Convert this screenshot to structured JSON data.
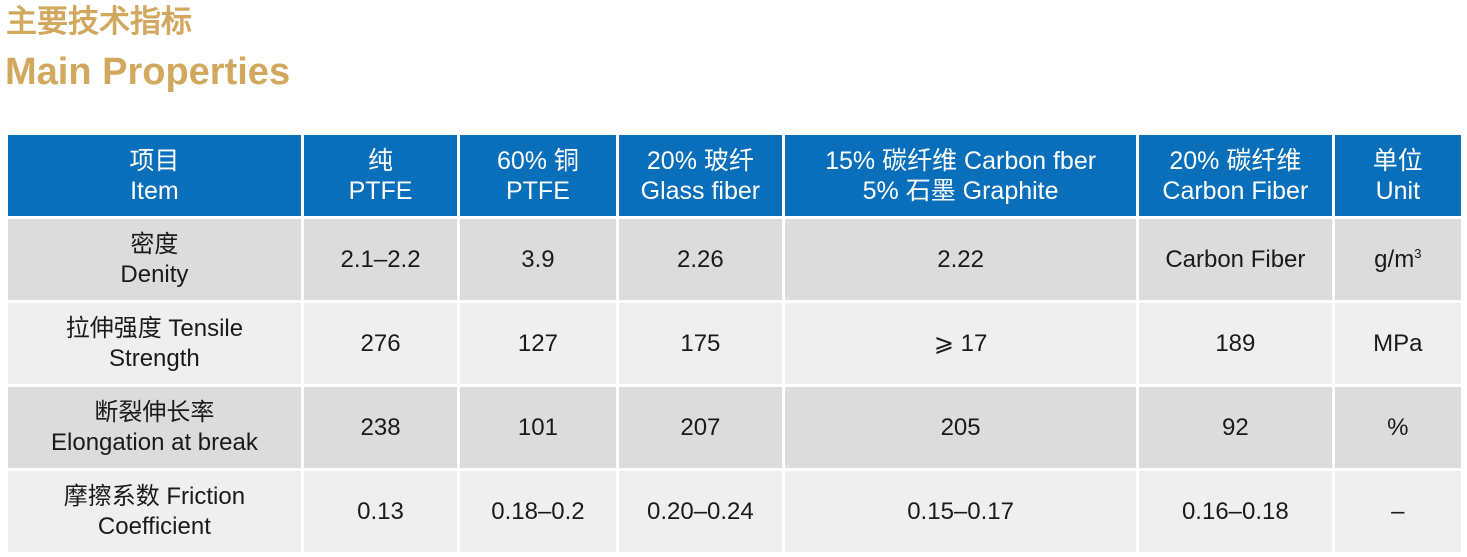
{
  "title_cn": "主要技术指标",
  "title_en": "Main Properties",
  "columns": [
    {
      "line1": "项目",
      "line2": "Item"
    },
    {
      "line1": "纯",
      "line2": "PTFE"
    },
    {
      "line1": "60% 铜",
      "line2": "PTFE"
    },
    {
      "line1": "20% 玻纤",
      "line2": "Glass fiber"
    },
    {
      "line1": "15% 碳纤维 Carbon fber",
      "line2": "5% 石墨 Graphite"
    },
    {
      "line1": "20% 碳纤维",
      "line2": "Carbon Fiber"
    },
    {
      "line1": "单位",
      "line2": "Unit"
    }
  ],
  "rows": [
    {
      "item_line1": "密度",
      "item_line2": "Denity",
      "values": [
        "2.1–2.2",
        "3.9",
        "2.26",
        "2.22",
        "Carbon Fiber"
      ],
      "unit": "g/m",
      "unit_sup": "3"
    },
    {
      "item_line1": "拉伸强度 Tensile",
      "item_line2": "Strength",
      "values": [
        "276",
        "127",
        "175",
        "⩾ 17",
        "189"
      ],
      "unit": "MPa",
      "unit_sup": ""
    },
    {
      "item_line1": "断裂伸长率",
      "item_line2": "Elongation at break",
      "values": [
        "238",
        "101",
        "207",
        "205",
        "92"
      ],
      "unit": "%",
      "unit_sup": ""
    },
    {
      "item_line1": "摩擦系数 Friction",
      "item_line2": "Coefficient",
      "values": [
        "0.13",
        "0.18–0.2",
        "0.20–0.24",
        "0.15–0.17",
        "0.16–0.18"
      ],
      "unit": "–",
      "unit_sup": ""
    }
  ]
}
